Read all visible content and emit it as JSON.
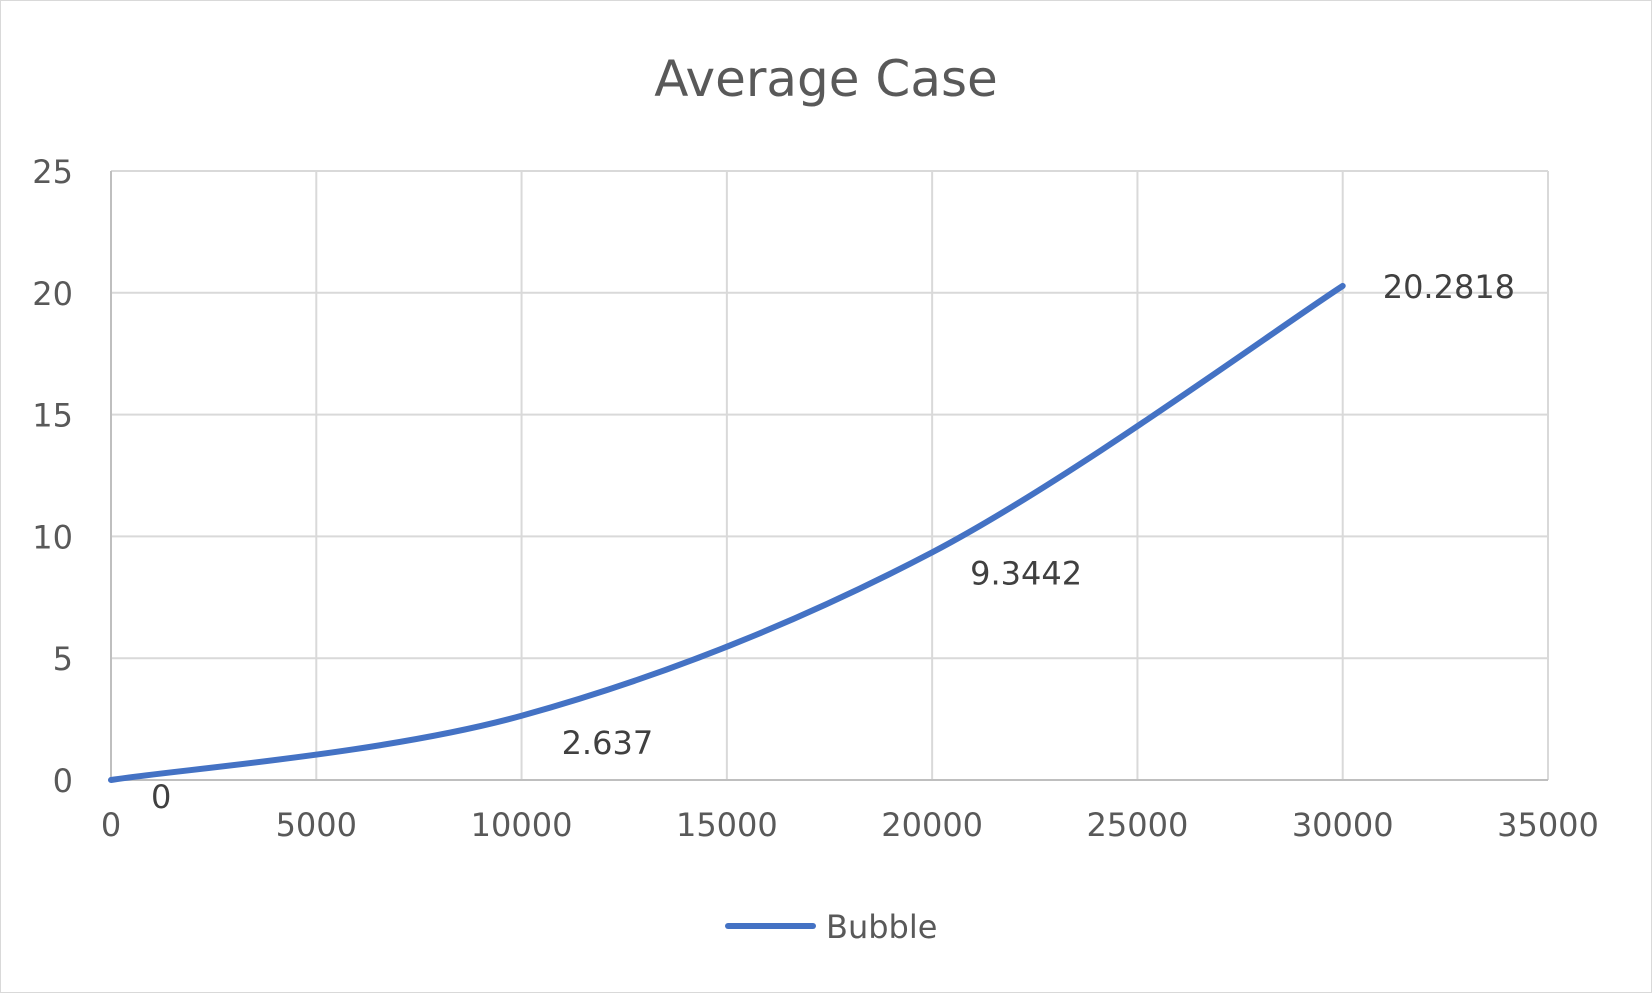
{
  "chart_data": {
    "type": "line",
    "title": "Average Case",
    "xlabel": "",
    "ylabel": "",
    "xlim": [
      0,
      35000
    ],
    "ylim": [
      0,
      25
    ],
    "x_ticks": [
      0,
      5000,
      10000,
      15000,
      20000,
      25000,
      30000,
      35000
    ],
    "y_ticks": [
      0,
      5,
      10,
      15,
      20,
      25
    ],
    "grid": true,
    "legend": "bottom",
    "smooth": true,
    "series": [
      {
        "name": "Bubble",
        "color": "#4472C4",
        "x": [
          0,
          10000,
          20000,
          30000
        ],
        "y": [
          0,
          2.637,
          9.3442,
          20.2818
        ],
        "labels": [
          "0",
          "2.637",
          "9.3442",
          "20.2818"
        ]
      }
    ]
  }
}
